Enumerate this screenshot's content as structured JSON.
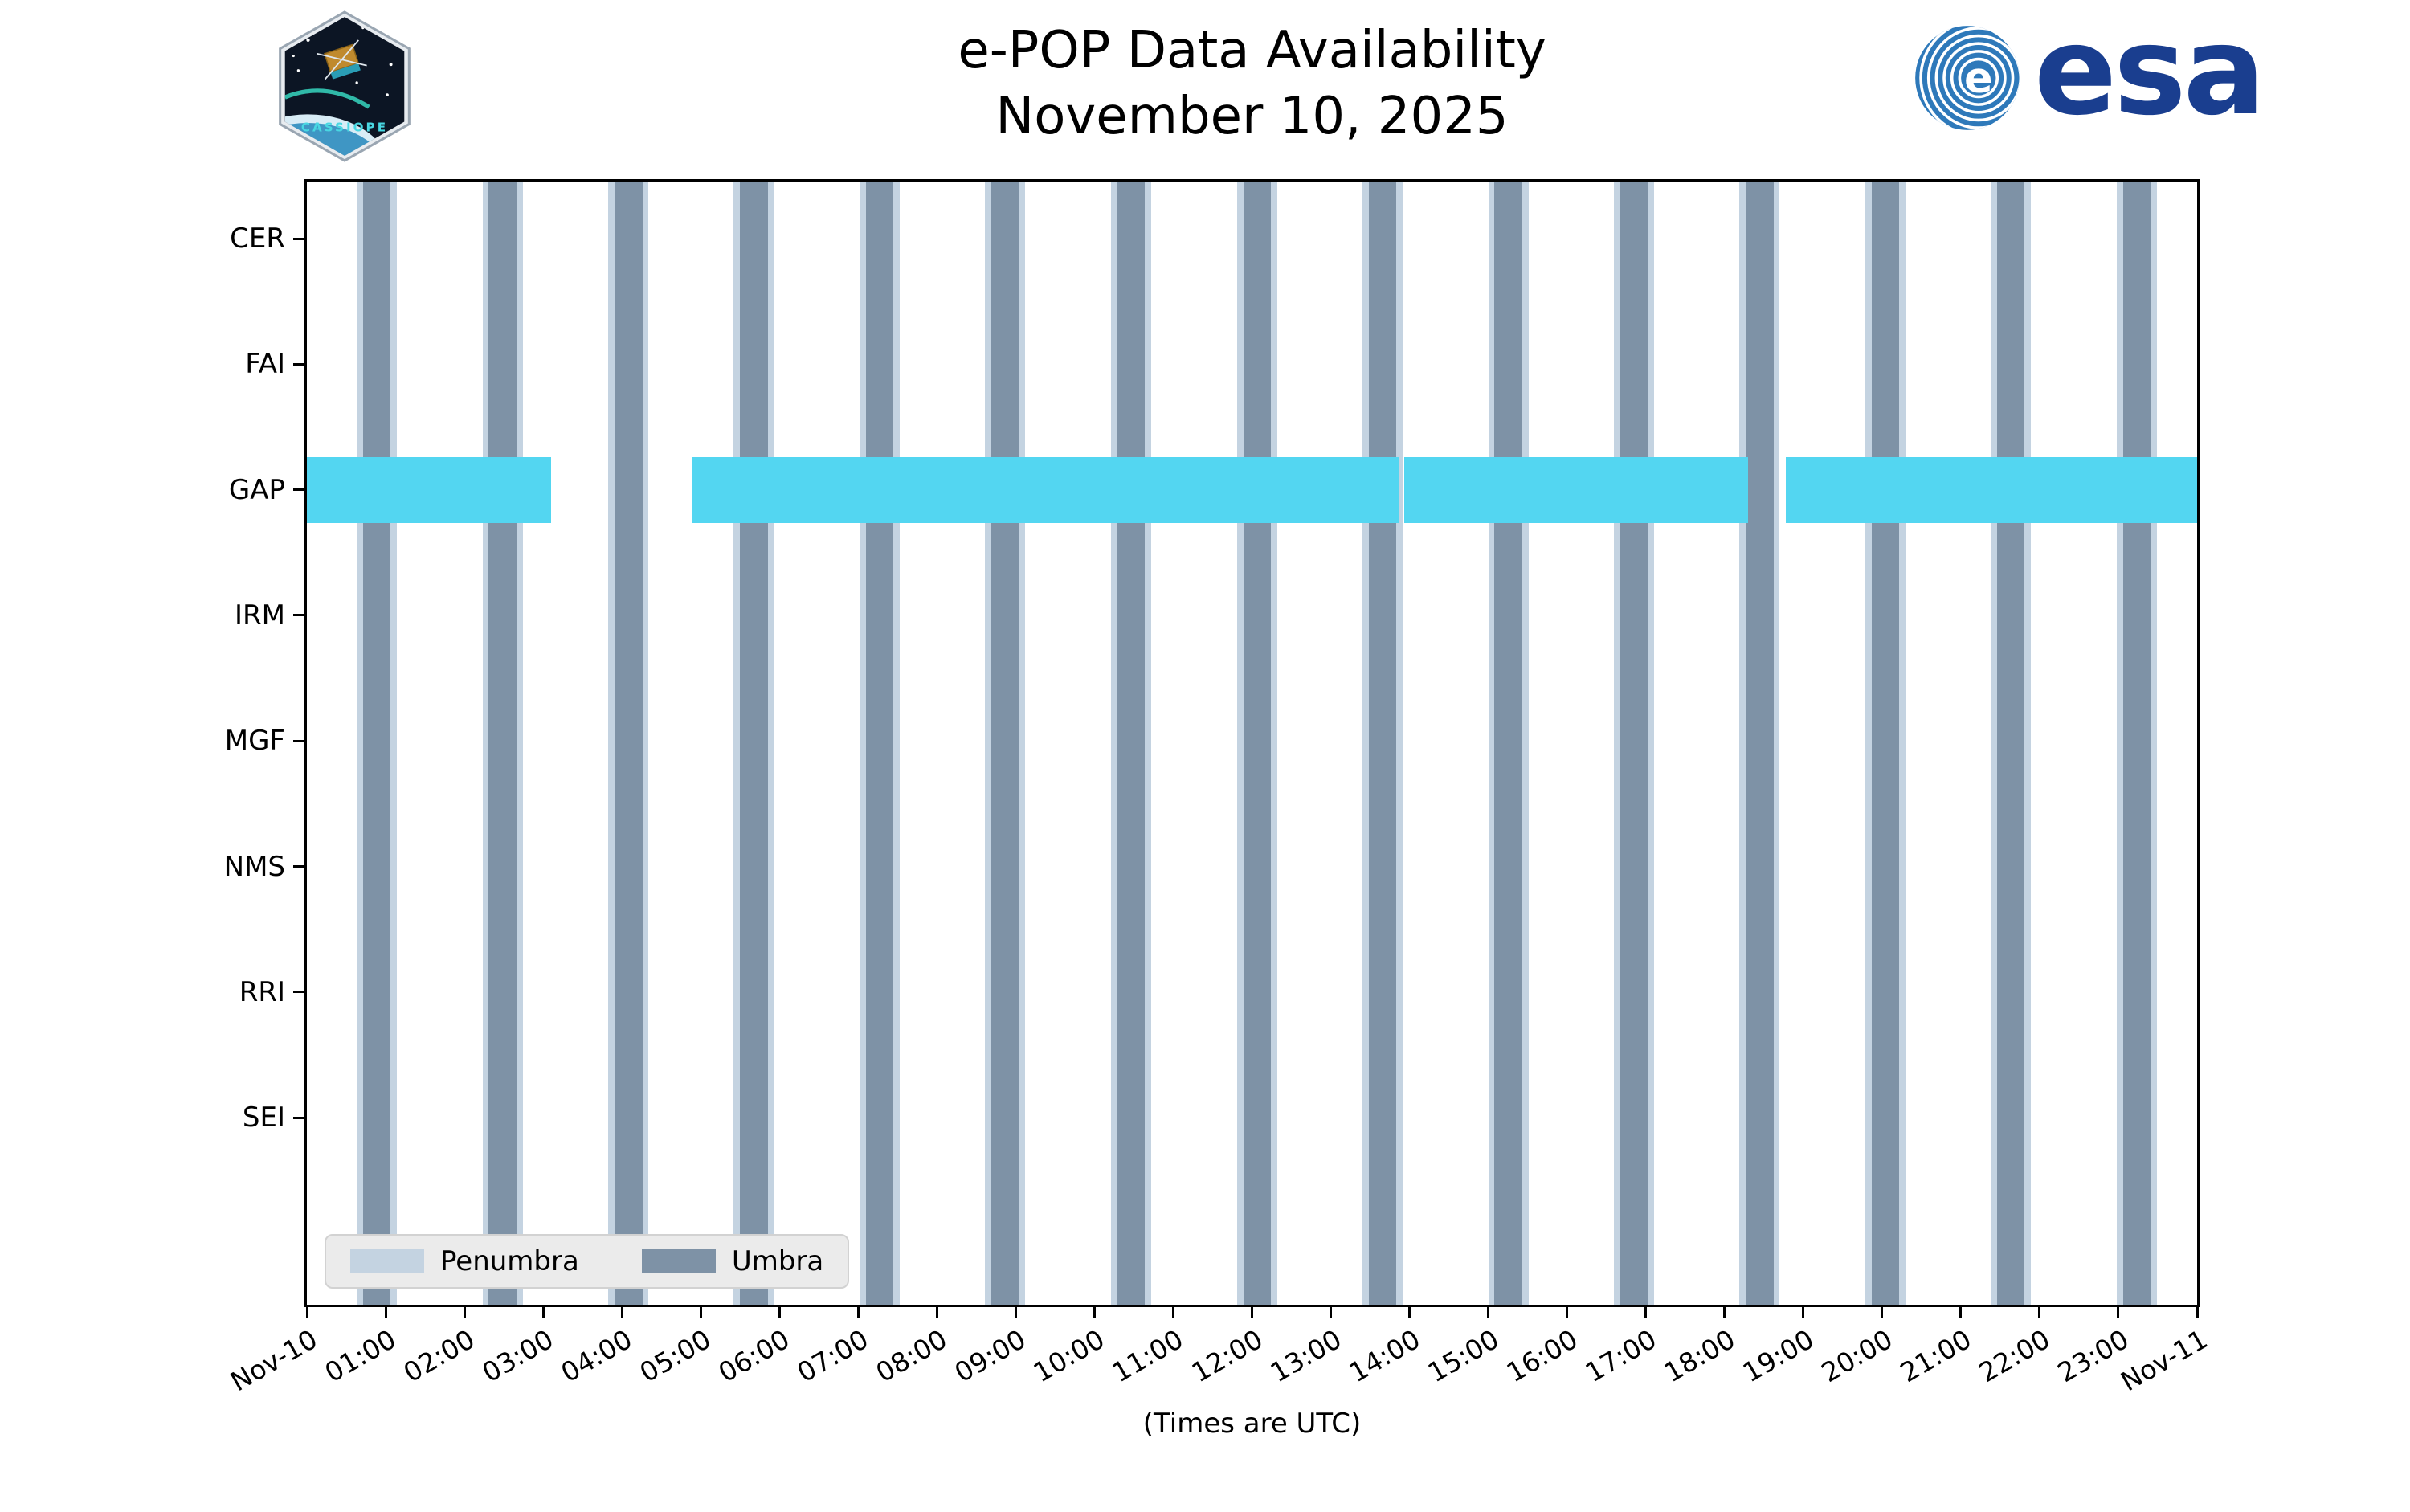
{
  "header": {
    "cassiope_label": "CASSIOPE",
    "esa_wordmark": "esa"
  },
  "chart_data": {
    "type": "bar",
    "subtype": "horizontal-availability-timeline",
    "title": "e-POP Data Availability",
    "subtitle": "November 10, 2025",
    "xlabel": "(Times are UTC)",
    "categories": [
      "CER",
      "FAI",
      "GAP",
      "IRM",
      "MGF",
      "NMS",
      "RRI",
      "SEI"
    ],
    "x_axis": {
      "unit": "hours UTC",
      "min": 0,
      "max": 24,
      "tick_hours": [
        0,
        1,
        2,
        3,
        4,
        5,
        6,
        7,
        8,
        9,
        10,
        11,
        12,
        13,
        14,
        15,
        16,
        17,
        18,
        19,
        20,
        21,
        22,
        23,
        24
      ],
      "tick_labels": [
        "Nov-10",
        "01:00",
        "02:00",
        "03:00",
        "04:00",
        "05:00",
        "06:00",
        "07:00",
        "08:00",
        "09:00",
        "10:00",
        "11:00",
        "12:00",
        "13:00",
        "14:00",
        "15:00",
        "16:00",
        "17:00",
        "18:00",
        "19:00",
        "20:00",
        "21:00",
        "22:00",
        "23:00",
        "Nov-11"
      ]
    },
    "grid": false,
    "legend_position": "lower left",
    "legend": [
      {
        "label": "Penumbra",
        "color": "#c4d3e1"
      },
      {
        "label": "Umbra",
        "color": "#7e92a6"
      }
    ],
    "colors": {
      "penumbra": "#c4d3e1",
      "umbra": "#7e92a6",
      "gap_bar": "#53d6f1",
      "axis": "#000000",
      "background": "#ffffff"
    },
    "umbra_intervals_hours": [
      [
        0.71,
        1.06
      ],
      [
        2.31,
        2.66
      ],
      [
        3.91,
        4.26
      ],
      [
        5.5,
        5.85
      ],
      [
        7.1,
        7.45
      ],
      [
        8.69,
        9.04
      ],
      [
        10.29,
        10.64
      ],
      [
        11.89,
        12.24
      ],
      [
        13.48,
        13.83
      ],
      [
        15.08,
        15.43
      ],
      [
        16.67,
        17.02
      ],
      [
        18.27,
        18.62
      ],
      [
        19.87,
        20.22
      ],
      [
        21.46,
        21.81
      ],
      [
        23.06,
        23.41
      ]
    ],
    "penumbra_pad_hours": 0.08,
    "series": [
      {
        "name": "GAP data availability",
        "row": "GAP",
        "color": "#53d6f1",
        "intervals_hours": [
          [
            0.0,
            3.1
          ],
          [
            4.9,
            13.87
          ],
          [
            13.93,
            18.3
          ],
          [
            18.78,
            24.0
          ]
        ]
      }
    ]
  }
}
